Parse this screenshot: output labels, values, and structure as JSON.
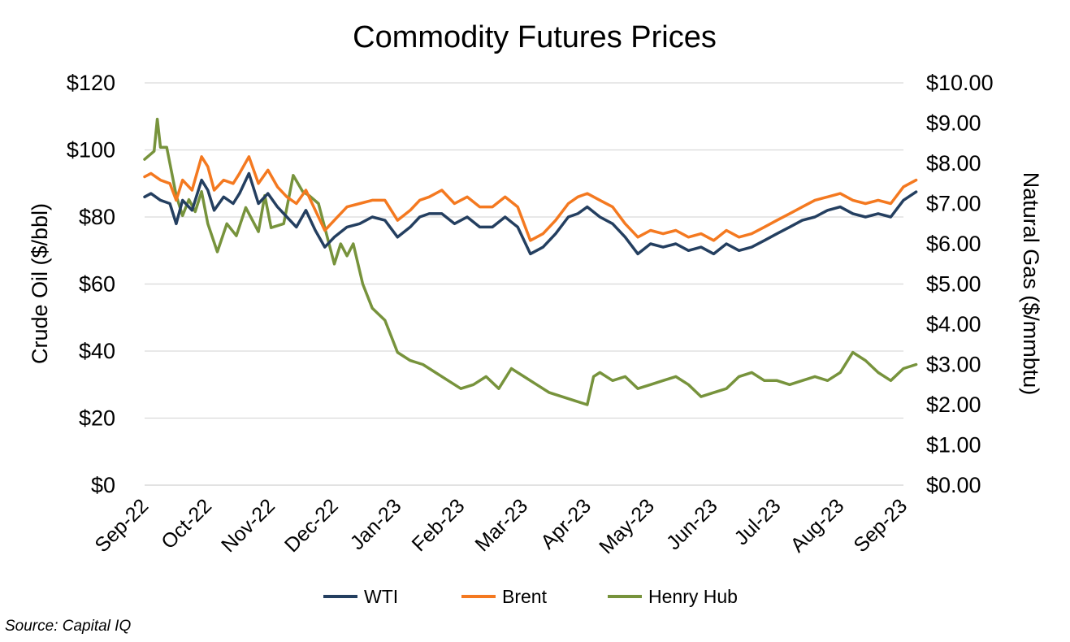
{
  "chart_data": {
    "type": "line",
    "title": "Commodity Futures Prices",
    "ylabel_left": "Crude Oil ($/bbl)",
    "ylabel_right": "Natural Gas ($/mmbtu)",
    "ylim_left": [
      0,
      120
    ],
    "ylim_right": [
      0,
      10
    ],
    "yticks_left": [
      "$0",
      "$20",
      "$40",
      "$60",
      "$80",
      "$100",
      "$120"
    ],
    "yticks_right": [
      "$0.00",
      "$1.00",
      "$2.00",
      "$3.00",
      "$4.00",
      "$5.00",
      "$6.00",
      "$7.00",
      "$8.00",
      "$9.00",
      "$10.00"
    ],
    "categories": [
      "Sep-22",
      "Oct-22",
      "Nov-22",
      "Dec-22",
      "Jan-23",
      "Feb-23",
      "Mar-23",
      "Apr-23",
      "May-23",
      "Jun-23",
      "Jul-23",
      "Aug-23",
      "Sep-23"
    ],
    "grid": true,
    "legend_position": "bottom",
    "series": [
      {
        "name": "WTI",
        "axis": "left",
        "color": "#243f60",
        "x": [
          0,
          0.1,
          0.25,
          0.4,
          0.5,
          0.6,
          0.75,
          0.9,
          1.0,
          1.1,
          1.25,
          1.4,
          1.5,
          1.65,
          1.8,
          1.95,
          2.1,
          2.25,
          2.4,
          2.55,
          2.7,
          2.85,
          3.0,
          3.2,
          3.4,
          3.6,
          3.8,
          4.0,
          4.2,
          4.35,
          4.5,
          4.7,
          4.9,
          5.1,
          5.3,
          5.5,
          5.7,
          5.9,
          6.1,
          6.3,
          6.5,
          6.7,
          6.85,
          7.0,
          7.2,
          7.4,
          7.6,
          7.8,
          8.0,
          8.2,
          8.4,
          8.6,
          8.8,
          9.0,
          9.2,
          9.4,
          9.6,
          9.8,
          10.0,
          10.2,
          10.4,
          10.6,
          10.8,
          11.0,
          11.2,
          11.4,
          11.6,
          11.8,
          12.0,
          12.2
        ],
        "values": [
          86,
          87,
          85,
          84,
          78,
          85,
          82,
          91,
          88,
          82,
          86,
          84,
          87,
          93,
          84,
          87,
          83,
          80,
          77,
          82,
          76,
          71,
          74,
          77,
          78,
          80,
          79,
          74,
          77,
          80,
          81,
          81,
          78,
          80,
          77,
          77,
          80,
          77,
          69,
          71,
          75,
          80,
          81,
          83,
          80,
          78,
          74,
          69,
          72,
          71,
          72,
          70,
          71,
          69,
          72,
          70,
          71,
          73,
          75,
          77,
          79,
          80,
          82,
          83,
          81,
          80,
          81,
          80,
          85,
          87.5
        ]
      },
      {
        "name": "Brent",
        "axis": "left",
        "color": "#f47920",
        "x": [
          0,
          0.1,
          0.25,
          0.4,
          0.5,
          0.6,
          0.75,
          0.9,
          1.0,
          1.1,
          1.25,
          1.4,
          1.5,
          1.65,
          1.8,
          1.95,
          2.1,
          2.25,
          2.4,
          2.55,
          2.7,
          2.85,
          3.0,
          3.2,
          3.4,
          3.6,
          3.8,
          4.0,
          4.2,
          4.35,
          4.5,
          4.7,
          4.9,
          5.1,
          5.3,
          5.5,
          5.7,
          5.9,
          6.1,
          6.3,
          6.5,
          6.7,
          6.85,
          7.0,
          7.2,
          7.4,
          7.6,
          7.8,
          8.0,
          8.2,
          8.4,
          8.6,
          8.8,
          9.0,
          9.2,
          9.4,
          9.6,
          9.8,
          10.0,
          10.2,
          10.4,
          10.6,
          10.8,
          11.0,
          11.2,
          11.4,
          11.6,
          11.8,
          12.0,
          12.2
        ],
        "values": [
          92,
          93,
          91,
          90,
          85,
          91,
          88,
          98,
          95,
          88,
          91,
          90,
          93,
          98,
          90,
          94,
          89,
          86,
          84,
          88,
          82,
          76,
          79,
          83,
          84,
          85,
          85,
          79,
          82,
          85,
          86,
          88,
          84,
          86,
          83,
          83,
          86,
          83,
          73,
          75,
          79,
          84,
          86,
          87,
          85,
          83,
          78,
          74,
          76,
          75,
          76,
          74,
          75,
          73,
          76,
          74,
          75,
          77,
          79,
          81,
          83,
          85,
          86,
          87,
          85,
          84,
          85,
          84,
          89,
          91
        ]
      },
      {
        "name": "Henry Hub",
        "axis": "right",
        "color": "#77933c",
        "x": [
          0,
          0.15,
          0.2,
          0.25,
          0.35,
          0.5,
          0.6,
          0.7,
          0.8,
          0.9,
          1.0,
          1.15,
          1.3,
          1.45,
          1.6,
          1.8,
          1.9,
          2.0,
          2.2,
          2.35,
          2.5,
          2.6,
          2.75,
          2.9,
          3.0,
          3.1,
          3.2,
          3.3,
          3.45,
          3.6,
          3.8,
          4.0,
          4.2,
          4.4,
          4.6,
          4.8,
          5.0,
          5.2,
          5.4,
          5.6,
          5.8,
          6.0,
          6.2,
          6.4,
          6.6,
          6.8,
          7.0,
          7.1,
          7.2,
          7.4,
          7.6,
          7.8,
          8.0,
          8.2,
          8.4,
          8.6,
          8.8,
          9.0,
          9.2,
          9.4,
          9.6,
          9.8,
          10.0,
          10.2,
          10.4,
          10.6,
          10.8,
          11.0,
          11.2,
          11.4,
          11.6,
          11.8,
          12.0,
          12.2
        ],
        "values": [
          8.1,
          8.3,
          9.1,
          8.4,
          8.4,
          7.2,
          6.7,
          7.1,
          6.8,
          7.3,
          6.5,
          5.8,
          6.5,
          6.2,
          6.9,
          6.3,
          7.2,
          6.4,
          6.5,
          7.7,
          7.3,
          7.2,
          7.0,
          6.1,
          5.5,
          6.0,
          5.7,
          6.0,
          5.0,
          4.4,
          4.1,
          3.3,
          3.1,
          3.0,
          2.8,
          2.6,
          2.4,
          2.5,
          2.7,
          2.4,
          2.9,
          2.7,
          2.5,
          2.3,
          2.2,
          2.1,
          2.0,
          2.7,
          2.8,
          2.6,
          2.7,
          2.4,
          2.5,
          2.6,
          2.7,
          2.5,
          2.2,
          2.3,
          2.4,
          2.7,
          2.8,
          2.6,
          2.6,
          2.5,
          2.6,
          2.7,
          2.6,
          2.8,
          3.3,
          3.1,
          2.8,
          2.6,
          2.9,
          3.0
        ]
      }
    ]
  },
  "source": "Source: Capital IQ"
}
